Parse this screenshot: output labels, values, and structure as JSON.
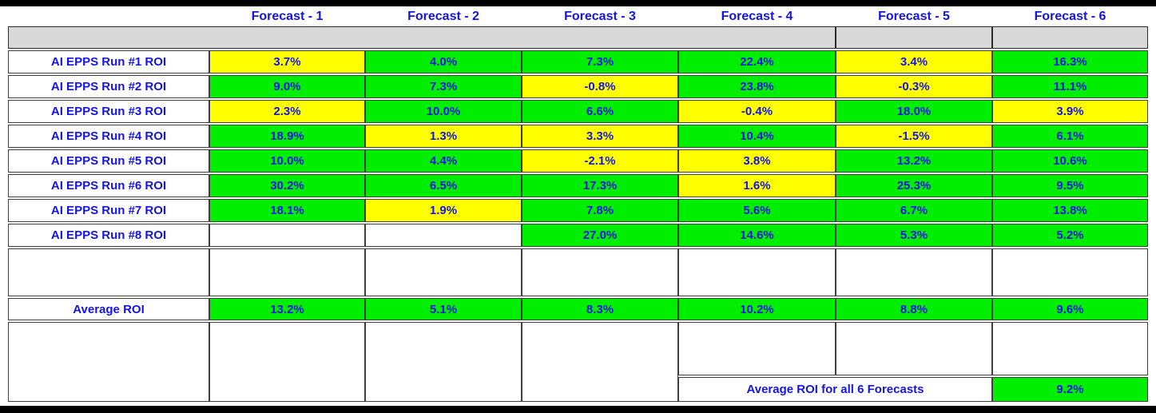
{
  "colors": {
    "green": "#00EE00",
    "yellow": "#FFFF00",
    "gray_band": "#D9D9D9",
    "text_blue": "#1414E8",
    "border": "#3f3f3f",
    "frame": "#000000"
  },
  "chart_data": {
    "type": "table",
    "columns": [
      "Forecast - 1",
      "Forecast - 2",
      "Forecast - 3",
      "Forecast - 4",
      "Forecast - 5",
      "Forecast - 6"
    ],
    "rows": [
      {
        "label": "AI EPPS Run #1 ROI",
        "values": [
          "3.7%",
          "4.0%",
          "7.3%",
          "22.4%",
          "3.4%",
          "16.3%"
        ],
        "colors": [
          "yellow",
          "green",
          "green",
          "green",
          "yellow",
          "green"
        ]
      },
      {
        "label": "AI EPPS Run #2 ROI",
        "values": [
          "9.0%",
          "7.3%",
          "-0.8%",
          "23.8%",
          "-0.3%",
          "11.1%"
        ],
        "colors": [
          "green",
          "green",
          "yellow",
          "green",
          "yellow",
          "green"
        ]
      },
      {
        "label": "AI EPPS Run #3 ROI",
        "values": [
          "2.3%",
          "10.0%",
          "6.6%",
          "-0.4%",
          "18.0%",
          "3.9%"
        ],
        "colors": [
          "yellow",
          "green",
          "green",
          "yellow",
          "green",
          "yellow"
        ]
      },
      {
        "label": "AI EPPS Run #4 ROI",
        "values": [
          "18.9%",
          "1.3%",
          "3.3%",
          "10.4%",
          "-1.5%",
          "6.1%"
        ],
        "colors": [
          "green",
          "yellow",
          "yellow",
          "green",
          "yellow",
          "green"
        ]
      },
      {
        "label": "AI EPPS Run #5 ROI",
        "values": [
          "10.0%",
          "4.4%",
          "-2.1%",
          "3.8%",
          "13.2%",
          "10.6%"
        ],
        "colors": [
          "green",
          "green",
          "yellow",
          "yellow",
          "green",
          "green"
        ]
      },
      {
        "label": "AI EPPS Run #6 ROI",
        "values": [
          "30.2%",
          "6.5%",
          "17.3%",
          "1.6%",
          "25.3%",
          "9.5%"
        ],
        "colors": [
          "green",
          "green",
          "green",
          "yellow",
          "green",
          "green"
        ]
      },
      {
        "label": "AI EPPS Run #7 ROI",
        "values": [
          "18.1%",
          "1.9%",
          "7.8%",
          "5.6%",
          "6.7%",
          "13.8%"
        ],
        "colors": [
          "green",
          "yellow",
          "green",
          "green",
          "green",
          "green"
        ]
      },
      {
        "label": "AI EPPS Run #8 ROI",
        "values": [
          "",
          "",
          "27.0%",
          "14.6%",
          "5.3%",
          "5.2%"
        ],
        "colors": [
          "none",
          "none",
          "green",
          "green",
          "green",
          "green"
        ]
      }
    ],
    "average_row": {
      "label": "Average ROI",
      "values": [
        "13.2%",
        "5.1%",
        "8.3%",
        "10.2%",
        "8.8%",
        "9.6%"
      ],
      "colors": [
        "green",
        "green",
        "green",
        "green",
        "green",
        "green"
      ]
    },
    "overall": {
      "label": "Average ROI for all 6 Forecasts",
      "value": "9.2%",
      "color": "green"
    }
  }
}
